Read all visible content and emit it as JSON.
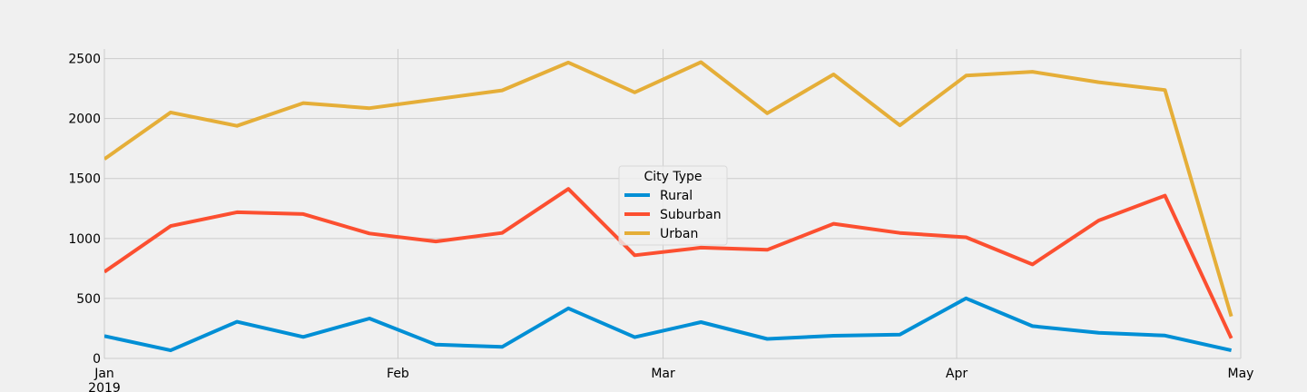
{
  "chart_data": {
    "type": "line",
    "title": "",
    "xlabel": "",
    "ylabel": "",
    "x": [
      "2019-01-01",
      "2019-01-08",
      "2019-01-15",
      "2019-01-22",
      "2019-01-29",
      "2019-02-05",
      "2019-02-12",
      "2019-02-19",
      "2019-02-26",
      "2019-03-05",
      "2019-03-12",
      "2019-03-19",
      "2019-03-26",
      "2019-04-02",
      "2019-04-09",
      "2019-04-16",
      "2019-04-23",
      "2019-04-30"
    ],
    "xlim": [
      "2019-01-01",
      "2019-05-01"
    ],
    "ylim": [
      0,
      2580
    ],
    "yticks": [
      0,
      500,
      1000,
      1500,
      2000,
      2500
    ],
    "xticks": [
      {
        "date": "2019-01-01",
        "label": "Jan",
        "sublabel": "2019"
      },
      {
        "date": "2019-02-01",
        "label": "Feb",
        "sublabel": ""
      },
      {
        "date": "2019-03-01",
        "label": "Mar",
        "sublabel": ""
      },
      {
        "date": "2019-04-01",
        "label": "Apr",
        "sublabel": ""
      },
      {
        "date": "2019-05-01",
        "label": "May",
        "sublabel": ""
      }
    ],
    "grid": true,
    "legend": {
      "title": "City Type",
      "placement": "center"
    },
    "series": [
      {
        "name": "Rural",
        "color": "#008fd5",
        "values": [
          187,
          67,
          306,
          179,
          333,
          115,
          96,
          418,
          177,
          303,
          163,
          189,
          199,
          501,
          269,
          214,
          191,
          67
        ]
      },
      {
        "name": "Suburban",
        "color": "#fc4f30",
        "values": [
          722,
          1104,
          1219,
          1204,
          1042,
          975,
          1046,
          1413,
          860,
          924,
          906,
          1123,
          1046,
          1010,
          784,
          1150,
          1357,
          168
        ]
      },
      {
        "name": "Urban",
        "color": "#e5ae38",
        "values": [
          1662,
          2051,
          1939,
          2129,
          2087,
          2161,
          2235,
          2467,
          2218,
          2470,
          2044,
          2368,
          1944,
          2358,
          2390,
          2303,
          2238,
          350
        ]
      }
    ]
  }
}
